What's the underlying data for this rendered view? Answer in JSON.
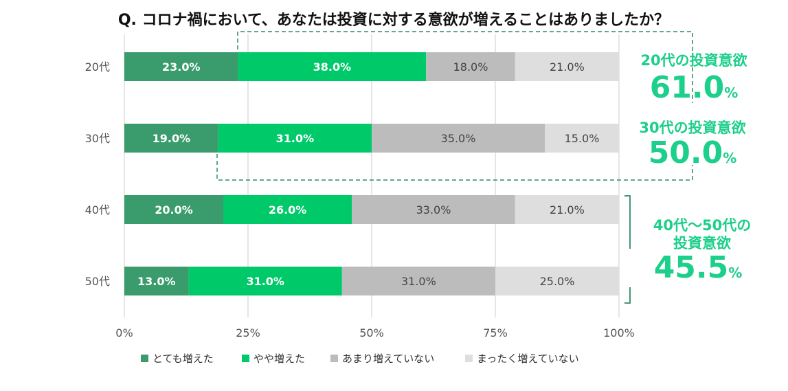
{
  "chart_data": {
    "type": "bar",
    "orientation": "horizontal",
    "stacked": true,
    "title": "Q. コロナ禍において、あなたは投資に対する意欲が増えることはありましたか？",
    "categories": [
      "20代",
      "30代",
      "40代",
      "50代"
    ],
    "series": [
      {
        "name": "とても増えた",
        "values": [
          23.0,
          19.0,
          20.0,
          13.0
        ],
        "color": "#3a9c6c"
      },
      {
        "name": "やや増えた",
        "values": [
          38.0,
          31.0,
          26.0,
          31.0
        ],
        "color": "#00c96a"
      },
      {
        "name": "あまり増えていない",
        "values": [
          18.0,
          35.0,
          33.0,
          31.0
        ],
        "color": "#bcbcbc"
      },
      {
        "name": "まったく増えていない",
        "values": [
          21.0,
          15.0,
          21.0,
          25.0
        ],
        "color": "#dedede"
      }
    ],
    "value_labels": [
      [
        "23.0%",
        "38.0%",
        "18.0%",
        "21.0%"
      ],
      [
        "19.0%",
        "31.0%",
        "35.0%",
        "15.0%"
      ],
      [
        "20.0%",
        "26.0%",
        "33.0%",
        "21.0%"
      ],
      [
        "13.0%",
        "31.0%",
        "31.0%",
        "25.0%"
      ]
    ],
    "x_ticks": [
      "0%",
      "25%",
      "50%",
      "75%",
      "100%"
    ],
    "xlim": [
      0,
      100
    ],
    "grid": true,
    "legend_position": "bottom",
    "callouts": [
      {
        "line1": "20代の投資意欲",
        "value": "61.0",
        "unit": "%"
      },
      {
        "line1": "30代の投資意欲",
        "value": "50.0",
        "unit": "%"
      },
      {
        "line1": "40代～50代の",
        "line2": "投資意欲",
        "value": "45.5",
        "unit": "%"
      }
    ],
    "accent_color": "#1ccf8a"
  }
}
